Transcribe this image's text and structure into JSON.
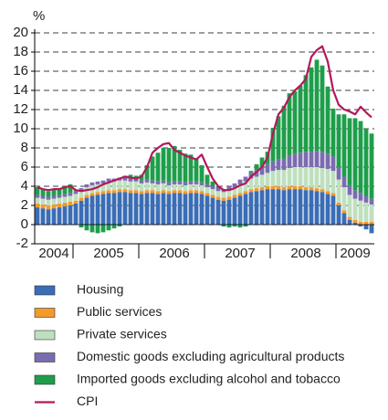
{
  "chart_data": {
    "type": "bar",
    "unit_label": "%",
    "categories": [
      null,
      null,
      null,
      "2004",
      null,
      null,
      null,
      null,
      null,
      null,
      null,
      null,
      null,
      "2005",
      null,
      null,
      null,
      null,
      null,
      null,
      null,
      null,
      null,
      null,
      null,
      "2006",
      null,
      null,
      null,
      null,
      null,
      null,
      null,
      null,
      null,
      null,
      null,
      "2007",
      null,
      null,
      null,
      null,
      null,
      null,
      null,
      null,
      null,
      null,
      null,
      "2008",
      null,
      null,
      null,
      null,
      null,
      null,
      null,
      null,
      "2009",
      null,
      null,
      null
    ],
    "ylim": [
      -2,
      20
    ],
    "yticks": [
      -2,
      0,
      2,
      4,
      6,
      8,
      10,
      12,
      14,
      16,
      18,
      20
    ],
    "grid": true,
    "series": [
      {
        "name": "Housing",
        "color": "#3a6db5",
        "values": [
          1.8,
          1.7,
          1.6,
          1.7,
          1.8,
          1.9,
          2.0,
          2.2,
          2.5,
          2.8,
          3.0,
          3.1,
          3.2,
          3.3,
          3.3,
          3.4,
          3.4,
          3.3,
          3.3,
          3.2,
          3.3,
          3.3,
          3.2,
          3.3,
          3.2,
          3.3,
          3.3,
          3.2,
          3.3,
          3.3,
          3.2,
          3.0,
          2.8,
          2.6,
          2.5,
          2.6,
          2.8,
          3.0,
          3.2,
          3.4,
          3.5,
          3.6,
          3.7,
          3.7,
          3.7,
          3.6,
          3.7,
          3.7,
          3.7,
          3.6,
          3.6,
          3.5,
          3.4,
          3.2,
          3.0,
          2.0,
          1.2,
          0.5,
          0.2,
          -0.2,
          -0.5,
          -0.9
        ]
      },
      {
        "name": "Public services",
        "color": "#f39a2a",
        "values": [
          0.4,
          0.4,
          0.4,
          0.4,
          0.4,
          0.4,
          0.4,
          0.3,
          0.3,
          0.3,
          0.3,
          0.3,
          0.3,
          0.3,
          0.3,
          0.3,
          0.3,
          0.3,
          0.3,
          0.3,
          0.3,
          0.3,
          0.3,
          0.3,
          0.3,
          0.3,
          0.3,
          0.3,
          0.3,
          0.3,
          0.3,
          0.3,
          0.3,
          0.3,
          0.3,
          0.3,
          0.3,
          0.3,
          0.3,
          0.3,
          0.3,
          0.3,
          0.3,
          0.3,
          0.3,
          0.3,
          0.3,
          0.3,
          0.3,
          0.3,
          0.3,
          0.3,
          0.3,
          0.3,
          0.3,
          0.3,
          0.3,
          0.3,
          0.3,
          0.3,
          0.3,
          0.3
        ]
      },
      {
        "name": "Private services",
        "color": "#bfe0bf",
        "values": [
          0.6,
          0.6,
          0.6,
          0.6,
          0.6,
          0.6,
          0.6,
          0.7,
          0.7,
          0.8,
          0.8,
          0.8,
          0.8,
          0.9,
          0.9,
          0.9,
          0.9,
          0.9,
          0.9,
          0.8,
          0.8,
          0.7,
          0.7,
          0.7,
          0.6,
          0.6,
          0.6,
          0.6,
          0.6,
          0.6,
          0.6,
          0.6,
          0.6,
          0.6,
          0.6,
          0.7,
          0.8,
          0.9,
          1.0,
          1.1,
          1.2,
          1.3,
          1.4,
          1.6,
          1.7,
          1.8,
          1.9,
          2.0,
          2.0,
          2.1,
          2.1,
          2.2,
          2.2,
          2.3,
          2.3,
          2.4,
          2.4,
          2.3,
          2.2,
          2.2,
          2.0,
          1.8
        ]
      },
      {
        "name": "Domestic goods excluding agricultural products",
        "color": "#7b6cb0",
        "values": [
          0.3,
          0.3,
          0.3,
          0.3,
          0.3,
          0.3,
          0.3,
          0.3,
          0.3,
          0.3,
          0.3,
          0.3,
          0.3,
          0.3,
          0.3,
          0.3,
          0.3,
          0.3,
          0.3,
          0.3,
          0.3,
          0.3,
          0.3,
          0.3,
          0.3,
          0.3,
          0.3,
          0.3,
          0.3,
          0.3,
          0.3,
          0.3,
          0.3,
          0.3,
          0.3,
          0.4,
          0.4,
          0.5,
          0.5,
          0.6,
          0.7,
          0.8,
          0.9,
          1.0,
          1.1,
          1.2,
          1.3,
          1.4,
          1.5,
          1.6,
          1.6,
          1.7,
          1.7,
          1.6,
          1.5,
          1.3,
          1.1,
          1.0,
          0.9,
          0.8,
          0.7,
          0.6
        ]
      },
      {
        "name": "Imported goods excluding alcohol and tobacco",
        "color": "#1e9e4a",
        "values": [
          0.8,
          0.7,
          0.6,
          0.7,
          0.6,
          0.8,
          0.9,
          0.1,
          -0.3,
          -0.6,
          -0.8,
          -0.9,
          -0.8,
          -0.6,
          -0.4,
          -0.2,
          0.2,
          0.4,
          0.3,
          0.6,
          1.5,
          2.5,
          3.0,
          3.4,
          3.6,
          3.7,
          3.3,
          3.0,
          2.8,
          2.4,
          1.8,
          1.0,
          0.5,
          0.2,
          -0.2,
          -0.3,
          -0.2,
          -0.3,
          -0.2,
          0.2,
          0.6,
          1.0,
          1.3,
          3.5,
          4.5,
          5.5,
          6.5,
          6.5,
          7.0,
          8.0,
          8.8,
          9.5,
          9.0,
          7.0,
          5.0,
          5.5,
          6.5,
          7.0,
          7.5,
          7.5,
          7.0,
          6.8
        ]
      },
      {
        "name": "CPI",
        "color": "#b5175b",
        "type": "line",
        "values": [
          3.9,
          3.7,
          3.6,
          3.7,
          3.7,
          3.9,
          4.0,
          3.6,
          3.5,
          3.6,
          3.7,
          3.9,
          4.2,
          4.4,
          4.6,
          4.8,
          5.0,
          4.9,
          4.8,
          5.0,
          6.0,
          7.5,
          8.0,
          8.4,
          8.5,
          7.8,
          7.5,
          7.2,
          7.0,
          6.8,
          7.3,
          6.0,
          4.8,
          4.0,
          3.6,
          3.6,
          3.8,
          4.1,
          4.3,
          5.0,
          5.5,
          6.0,
          7.0,
          9.5,
          11.5,
          12.2,
          13.3,
          14.0,
          14.5,
          15.2,
          17.5,
          18.2,
          18.6,
          17.0,
          14.0,
          12.5,
          12.0,
          11.8,
          11.5,
          12.3,
          11.7,
          11.2
        ]
      }
    ]
  }
}
